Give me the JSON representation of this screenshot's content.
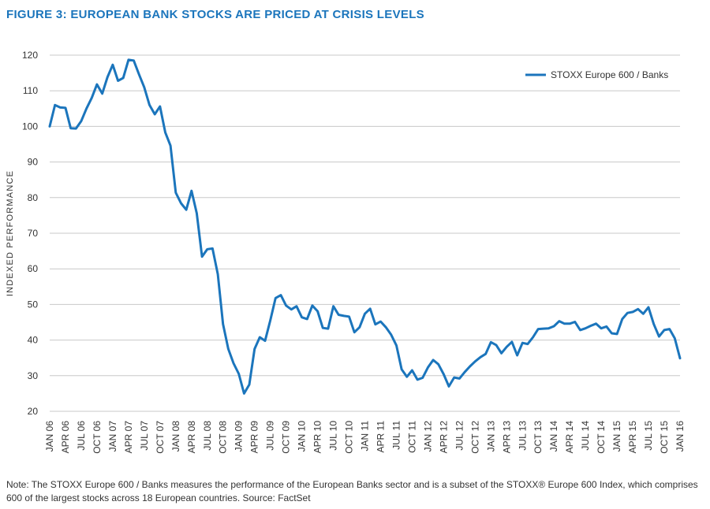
{
  "title": "FIGURE 3: EUROPEAN BANK STOCKS ARE PRICED AT CRISIS LEVELS",
  "note": "Note: The STOXX Europe 600 / Banks measures the performance of the European Banks sector and is a subset of the STOXX® Europe 600 Index, which comprises 600 of the largest stocks across 18 European countries. Source: FactSet",
  "colors": {
    "series": "#1b75bc",
    "title": "#1b75bc",
    "grid": "#c8c8c8"
  },
  "chart_data": {
    "type": "line",
    "title": "FIGURE 3: EUROPEAN BANK STOCKS ARE PRICED AT CRISIS LEVELS",
    "xlabel": "",
    "ylabel": "INDEXED PERFORMANCE",
    "ylim": [
      20,
      120
    ],
    "yticks": [
      20,
      30,
      40,
      50,
      60,
      70,
      80,
      90,
      100,
      110,
      120
    ],
    "xlim": [
      "2006-01",
      "2016-01"
    ],
    "xtick_labels": [
      "JAN 06",
      "APR 06",
      "JUL 06",
      "OCT 06",
      "JAN 07",
      "APR 07",
      "JUL 07",
      "OCT 07",
      "JAN 08",
      "APR 08",
      "JUL 08",
      "OCT 08",
      "JAN 09",
      "APR 09",
      "JUL 09",
      "OCT 09",
      "JAN 10",
      "APR 10",
      "JUL 10",
      "OCT 10",
      "JAN 11",
      "APR 11",
      "JUL 11",
      "OCT 11",
      "JAN 12",
      "APR 12",
      "JUL 12",
      "OCT 12",
      "JAN 13",
      "APR 13",
      "JUL 13",
      "OCT 13",
      "JAN 14",
      "APR 14",
      "JUL 14",
      "OCT 14",
      "JAN 15",
      "APR 15",
      "JUL 15",
      "OCT 15",
      "JAN 16"
    ],
    "grid": true,
    "legend_position": "top-right",
    "series": [
      {
        "name": "STOXX Europe 600 / Banks",
        "color": "#1b75bc",
        "x": [
          "2006-01",
          "2006-02",
          "2006-03",
          "2006-04",
          "2006-05",
          "2006-06",
          "2006-07",
          "2006-08",
          "2006-09",
          "2006-10",
          "2006-11",
          "2006-12",
          "2007-01",
          "2007-02",
          "2007-03",
          "2007-04",
          "2007-05",
          "2007-06",
          "2007-07",
          "2007-08",
          "2007-09",
          "2007-10",
          "2007-11",
          "2007-12",
          "2008-01",
          "2008-02",
          "2008-03",
          "2008-04",
          "2008-05",
          "2008-06",
          "2008-07",
          "2008-08",
          "2008-09",
          "2008-10",
          "2008-11",
          "2008-12",
          "2009-01",
          "2009-02",
          "2009-03",
          "2009-04",
          "2009-05",
          "2009-06",
          "2009-07",
          "2009-08",
          "2009-09",
          "2009-10",
          "2009-11",
          "2009-12",
          "2010-01",
          "2010-02",
          "2010-03",
          "2010-04",
          "2010-05",
          "2010-06",
          "2010-07",
          "2010-08",
          "2010-09",
          "2010-10",
          "2010-11",
          "2010-12",
          "2011-01",
          "2011-02",
          "2011-03",
          "2011-04",
          "2011-05",
          "2011-06",
          "2011-07",
          "2011-08",
          "2011-09",
          "2011-10",
          "2011-11",
          "2011-12",
          "2012-01",
          "2012-02",
          "2012-03",
          "2012-04",
          "2012-05",
          "2012-06",
          "2012-07",
          "2012-08",
          "2012-09",
          "2012-10",
          "2012-11",
          "2012-12",
          "2013-01",
          "2013-02",
          "2013-03",
          "2013-04",
          "2013-05",
          "2013-06",
          "2013-07",
          "2013-08",
          "2013-09",
          "2013-10",
          "2013-11",
          "2013-12",
          "2014-01",
          "2014-02",
          "2014-03",
          "2014-04",
          "2014-05",
          "2014-06",
          "2014-07",
          "2014-08",
          "2014-09",
          "2014-10",
          "2014-11",
          "2014-12",
          "2015-01",
          "2015-02",
          "2015-03",
          "2015-04",
          "2015-05",
          "2015-06",
          "2015-07",
          "2015-08",
          "2015-09",
          "2015-10",
          "2015-11",
          "2015-12",
          "2016-01"
        ],
        "values": [
          100,
          106,
          105.3,
          105.2,
          99.5,
          99.4,
          101.5,
          105,
          108,
          111.8,
          109.2,
          113.8,
          117.3,
          112.8,
          113.6,
          118.7,
          118.5,
          114.6,
          111,
          106,
          103.4,
          105.6,
          98.3,
          94.6,
          81.4,
          78.4,
          76.6,
          81.9,
          75.6,
          63.4,
          65.5,
          65.7,
          58.5,
          44.5,
          37.5,
          33.5,
          30.5,
          25,
          27.5,
          37.5,
          40.8,
          39.8,
          45.5,
          51.8,
          52.6,
          49.7,
          48.6,
          49.5,
          46.4,
          45.9,
          49.7,
          48.1,
          43.4,
          43.2,
          49.5,
          47.1,
          46.8,
          46.6,
          42.2,
          43.6,
          47.4,
          48.8,
          44.4,
          45.2,
          43.6,
          41.5,
          38.5,
          31.8,
          29.7,
          31.5,
          28.9,
          29.4,
          32.3,
          34.4,
          33.2,
          30.4,
          27,
          29.5,
          29.2,
          31,
          32.6,
          34,
          35.2,
          36.1,
          39.4,
          38.6,
          36.3,
          38.1,
          39.5,
          35.7,
          39.2,
          38.9,
          40.8,
          43.1,
          43.2,
          43.3,
          43.9,
          45.3,
          44.6,
          44.6,
          45.1,
          42.8,
          43.3,
          44,
          44.6,
          43.3,
          43.8,
          41.9,
          41.7,
          45.9,
          47.6,
          47.9,
          48.7,
          47.4,
          49.2,
          44.5,
          41,
          42.8,
          43.1,
          40.5,
          34.9
        ]
      }
    ]
  }
}
